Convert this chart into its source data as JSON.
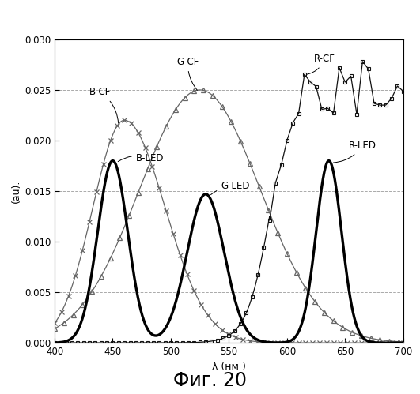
{
  "title": "",
  "xlabel": "λ (нм )",
  "ylabel": "(au).",
  "xlim": [
    400,
    700
  ],
  "ylim": [
    0,
    0.03
  ],
  "yticks": [
    0,
    0.005,
    0.01,
    0.015,
    0.02,
    0.025,
    0.03
  ],
  "xticks": [
    400,
    450,
    500,
    550,
    600,
    650,
    700
  ],
  "fig_caption": "Фиг. 20",
  "background_color": "#ffffff",
  "plot_bg_color": "#ffffff",
  "grid_color": "#aaaaaa",
  "grid_style": "--",
  "bcf_peak": 460,
  "bcf_sigma": 32,
  "bcf_amp": 0.022,
  "gcf_peak": 525,
  "gcf_sigma": 52,
  "gcf_amp": 0.025,
  "rcf_midpoint": 585,
  "rcf_steepness": 10,
  "rcf_plateau": 0.025,
  "bled_peak": 450,
  "bled_sigma": 13,
  "bled_amp": 0.018,
  "gled_peak": 530,
  "gled_sigma": 16,
  "gled_amp": 0.0147,
  "rled_peak": 636,
  "rled_sigma": 11,
  "rled_amp": 0.018
}
